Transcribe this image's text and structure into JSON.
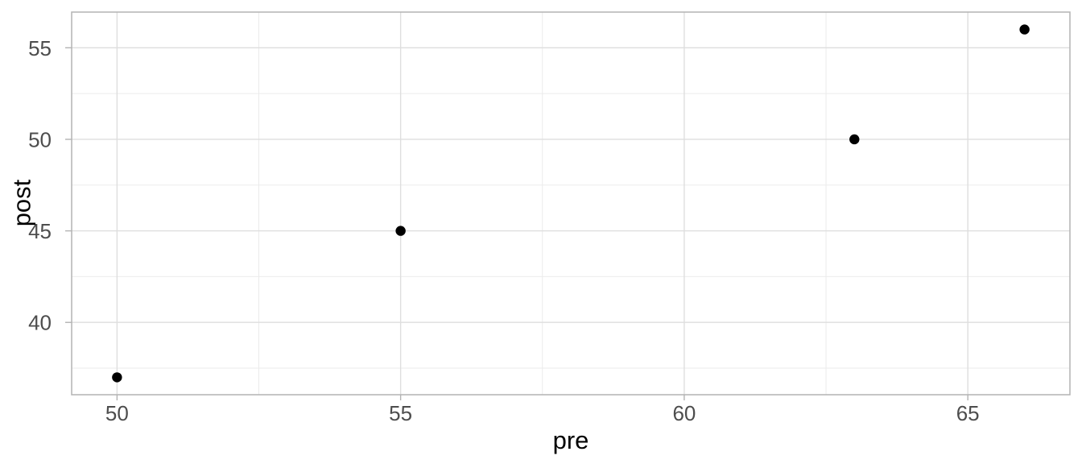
{
  "chart_data": {
    "type": "scatter",
    "xlabel": "pre",
    "ylabel": "post",
    "points": [
      {
        "x": 50,
        "y": 37
      },
      {
        "x": 55,
        "y": 45
      },
      {
        "x": 63,
        "y": 50
      },
      {
        "x": 66,
        "y": 56
      }
    ],
    "x_ticks": [
      50,
      55,
      60,
      65
    ],
    "y_ticks": [
      40,
      45,
      50,
      55
    ],
    "x_minor_gridlines": [
      52.5,
      57.5,
      62.5
    ],
    "y_minor_gridlines": [
      37.5,
      42.5,
      47.5,
      52.5
    ],
    "xlim": [
      49.2,
      66.8
    ],
    "ylim": [
      36.05,
      56.95
    ],
    "grid": true,
    "legend_position": "none",
    "colors": {
      "background": "#ffffff",
      "panel_background": "#ffffff",
      "panel_border": "#b3b3b3",
      "grid_major": "#dedede",
      "grid_minor": "#ebebeb",
      "tick_mark": "#b3b3b3",
      "tick_label": "#4d4d4d",
      "axis_title": "#000000",
      "point": "#000000"
    }
  }
}
